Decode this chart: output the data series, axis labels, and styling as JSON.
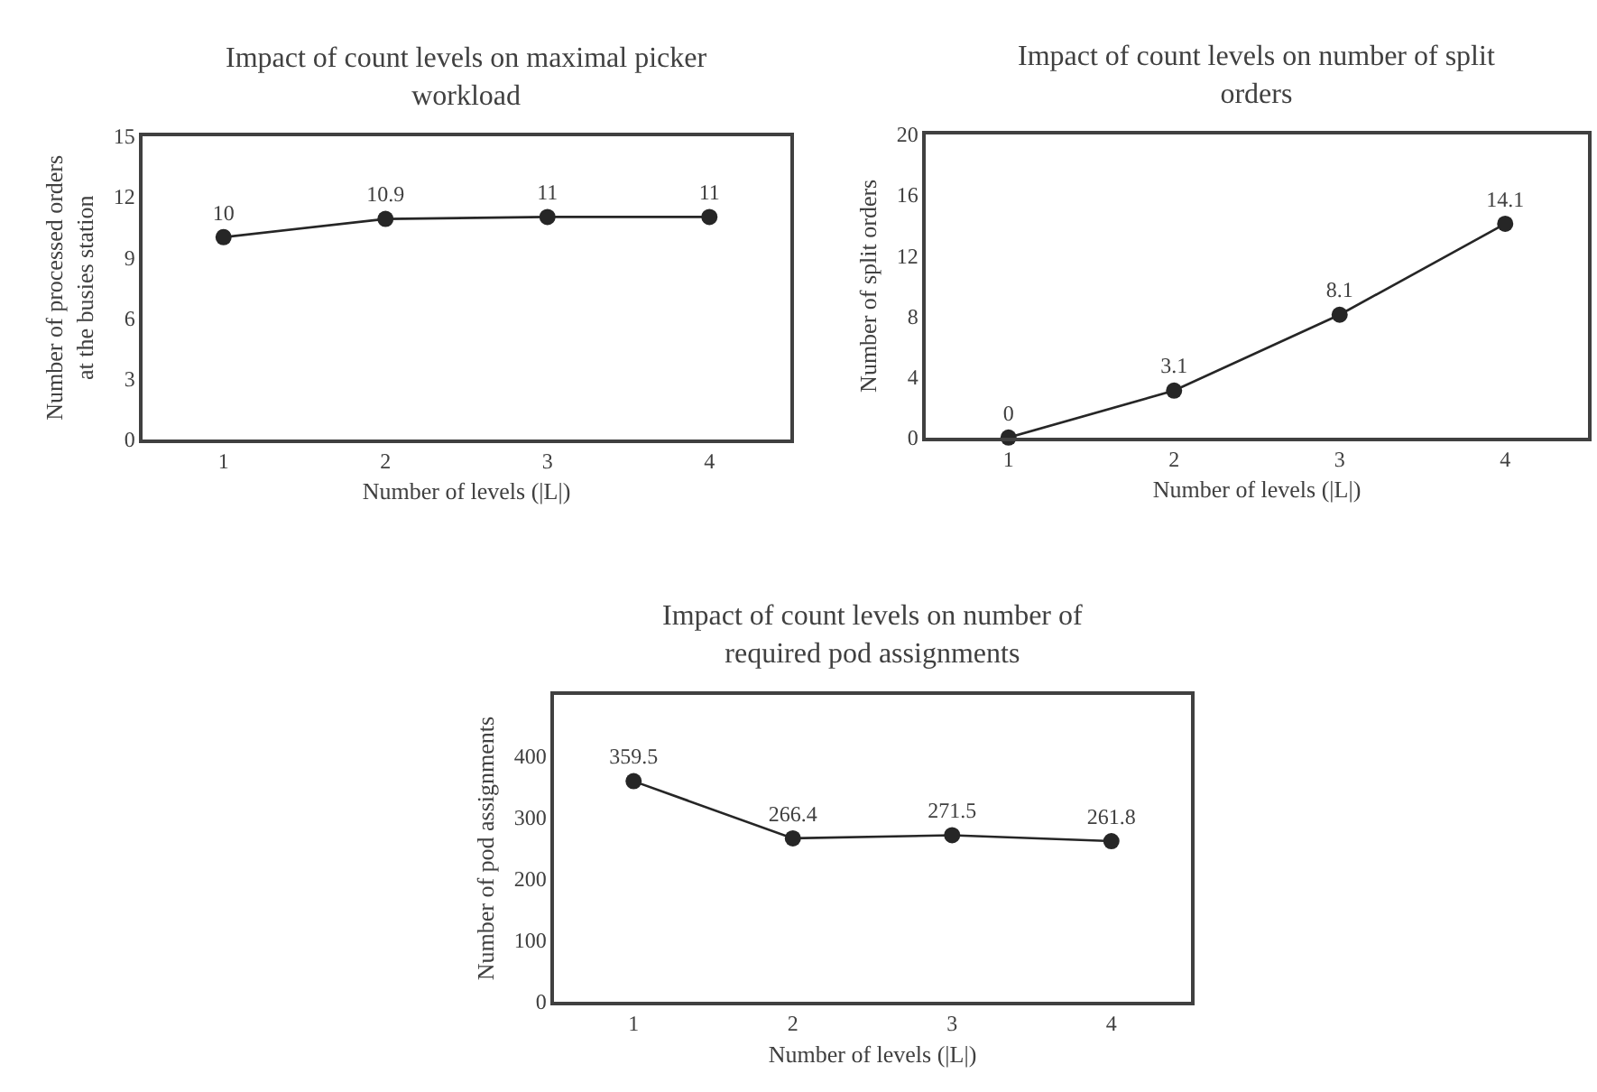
{
  "chart_data": [
    {
      "type": "line",
      "title": "Impact of count levels on maximal picker workload",
      "xlabel": "Number of levels (|L|)",
      "ylabel": "Number of processed orders at the busies station",
      "categories": [
        "1",
        "2",
        "3",
        "4"
      ],
      "values": [
        10,
        10.9,
        11,
        11
      ],
      "color": "#262626",
      "ylim": [
        0,
        15
      ],
      "yticks": [
        0,
        3,
        6,
        9,
        12,
        15
      ],
      "marker": "circle",
      "data_labels": true
    },
    {
      "type": "line",
      "title": "Impact of count levels on number of split orders",
      "xlabel": "Number of levels (|L|)",
      "ylabel": "Number of split orders",
      "categories": [
        "1",
        "2",
        "3",
        "4"
      ],
      "values": [
        0,
        3.1,
        8.1,
        14.1
      ],
      "color": "#262626",
      "ylim": [
        0,
        20
      ],
      "yticks": [
        0,
        4,
        8,
        12,
        16,
        20
      ],
      "marker": "circle",
      "data_labels": true
    },
    {
      "type": "line",
      "title": "Impact of count levels on number of required pod assignments",
      "xlabel": "Number of levels (|L|)",
      "ylabel": "Number of pod assignments",
      "categories": [
        "1",
        "2",
        "3",
        "4"
      ],
      "values": [
        359.5,
        266.4,
        271.5,
        261.8
      ],
      "color": "#262626",
      "ylim": [
        0,
        500
      ],
      "yticks": [
        0,
        100,
        200,
        300,
        400
      ],
      "marker": "circle",
      "data_labels": true
    }
  ]
}
